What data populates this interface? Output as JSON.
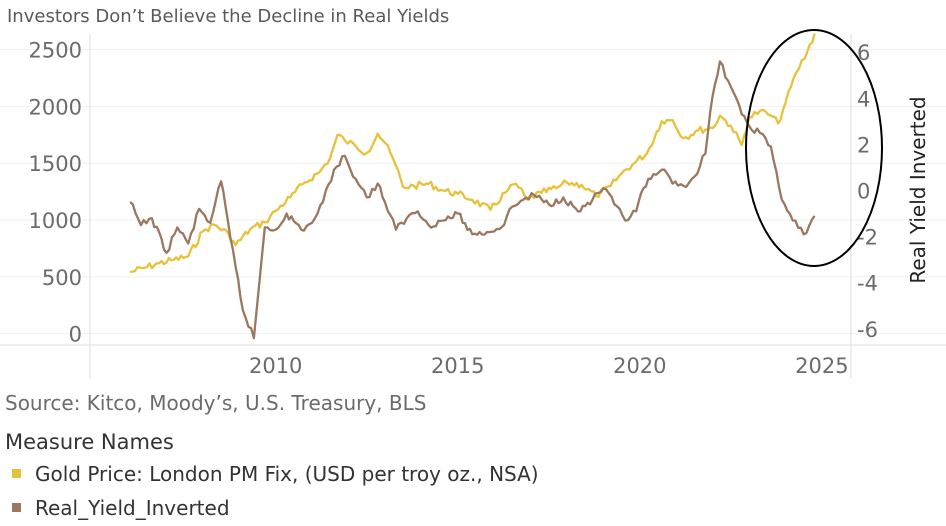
{
  "chart_data": {
    "type": "line",
    "title": "Investors Don’t Believe the Decline in Real Yields",
    "source": "Source: Kitco, Moody’s, U.S. Treasury, BLS",
    "legend_title": "Measure Names",
    "legend_position": "bottom-left",
    "grid": "horizontal-light",
    "x_axis": {
      "ticks": [
        2010,
        2015,
        2020,
        2025
      ],
      "range": [
        2004.9,
        2025.8
      ]
    },
    "y_left": {
      "ticks": [
        0,
        500,
        1000,
        1500,
        2000,
        2500
      ],
      "range": [
        -100,
        2620
      ]
    },
    "y_right": {
      "label": "Real Yield Inverted",
      "ticks": [
        -6,
        -4,
        -2,
        0,
        2,
        4,
        6
      ],
      "range": [
        -6.7,
        6.7
      ]
    },
    "series": [
      {
        "name": "Gold Price: London PM Fix, (USD per troy oz., NSA)",
        "color": "#e8c13a",
        "axis": "left",
        "x": [
          2006.0,
          2006.4,
          2006.8,
          2007.2,
          2007.6,
          2008.0,
          2008.3,
          2008.7,
          2008.9,
          2009.3,
          2009.7,
          2010.0,
          2010.4,
          2010.8,
          2011.2,
          2011.5,
          2011.7,
          2011.9,
          2012.2,
          2012.5,
          2012.8,
          2013.0,
          2013.3,
          2013.5,
          2013.8,
          2014.2,
          2014.6,
          2015.0,
          2015.4,
          2015.9,
          2016.3,
          2016.6,
          2016.9,
          2017.3,
          2017.7,
          2018.0,
          2018.4,
          2018.8,
          2019.2,
          2019.5,
          2019.8,
          2020.2,
          2020.6,
          2020.9,
          2021.2,
          2021.6,
          2022.0,
          2022.2,
          2022.5,
          2022.8,
          2023.0,
          2023.3,
          2023.6,
          2023.8,
          2024.0,
          2024.3,
          2024.6,
          2024.8
        ],
        "y": [
          540,
          580,
          620,
          650,
          680,
          900,
          960,
          880,
          780,
          920,
          980,
          1080,
          1200,
          1330,
          1420,
          1550,
          1750,
          1700,
          1650,
          1590,
          1760,
          1680,
          1480,
          1290,
          1300,
          1320,
          1260,
          1230,
          1180,
          1090,
          1240,
          1320,
          1180,
          1240,
          1280,
          1330,
          1310,
          1210,
          1300,
          1410,
          1490,
          1590,
          1870,
          1880,
          1720,
          1790,
          1810,
          1920,
          1830,
          1660,
          1900,
          1960,
          1920,
          1850,
          2030,
          2300,
          2480,
          2640
        ]
      },
      {
        "name": "Real_Yield_Inverted",
        "color": "#9b7760",
        "axis": "right",
        "x": [
          2006.0,
          2006.3,
          2006.6,
          2007.0,
          2007.3,
          2007.6,
          2007.9,
          2008.2,
          2008.5,
          2008.75,
          2008.9,
          2009.1,
          2009.4,
          2009.7,
          2010.0,
          2010.3,
          2010.7,
          2011.0,
          2011.3,
          2011.6,
          2011.9,
          2012.2,
          2012.5,
          2012.8,
          2013.0,
          2013.3,
          2013.6,
          2013.9,
          2014.2,
          2014.6,
          2015.0,
          2015.4,
          2015.8,
          2016.2,
          2016.5,
          2016.8,
          2017.1,
          2017.5,
          2017.9,
          2018.3,
          2018.7,
          2019.0,
          2019.3,
          2019.6,
          2019.9,
          2020.1,
          2020.3,
          2020.6,
          2020.9,
          2021.2,
          2021.5,
          2021.8,
          2022.0,
          2022.2,
          2022.5,
          2022.8,
          2023.0,
          2023.3,
          2023.6,
          2023.9,
          2024.2,
          2024.5,
          2024.8
        ],
        "y": [
          -0.5,
          -1.5,
          -1.2,
          -2.7,
          -1.6,
          -2.3,
          -0.8,
          -1.4,
          0.4,
          -2.0,
          -3.3,
          -5.2,
          -6.4,
          -1.6,
          -1.7,
          -1.0,
          -1.7,
          -1.4,
          -0.5,
          0.9,
          1.5,
          0.5,
          -0.3,
          0.3,
          -0.5,
          -1.7,
          -1.2,
          -0.9,
          -1.5,
          -1.3,
          -1.0,
          -1.9,
          -1.8,
          -1.6,
          -0.7,
          -0.4,
          -0.2,
          -0.6,
          -0.3,
          -0.9,
          -0.4,
          0.1,
          -0.6,
          -1.3,
          -0.9,
          0.1,
          0.5,
          0.9,
          0.3,
          0.2,
          0.6,
          1.6,
          4.1,
          5.6,
          4.5,
          3.3,
          2.8,
          2.5,
          1.9,
          -0.4,
          -1.3,
          -1.9,
          -1.1
        ]
      }
    ]
  }
}
